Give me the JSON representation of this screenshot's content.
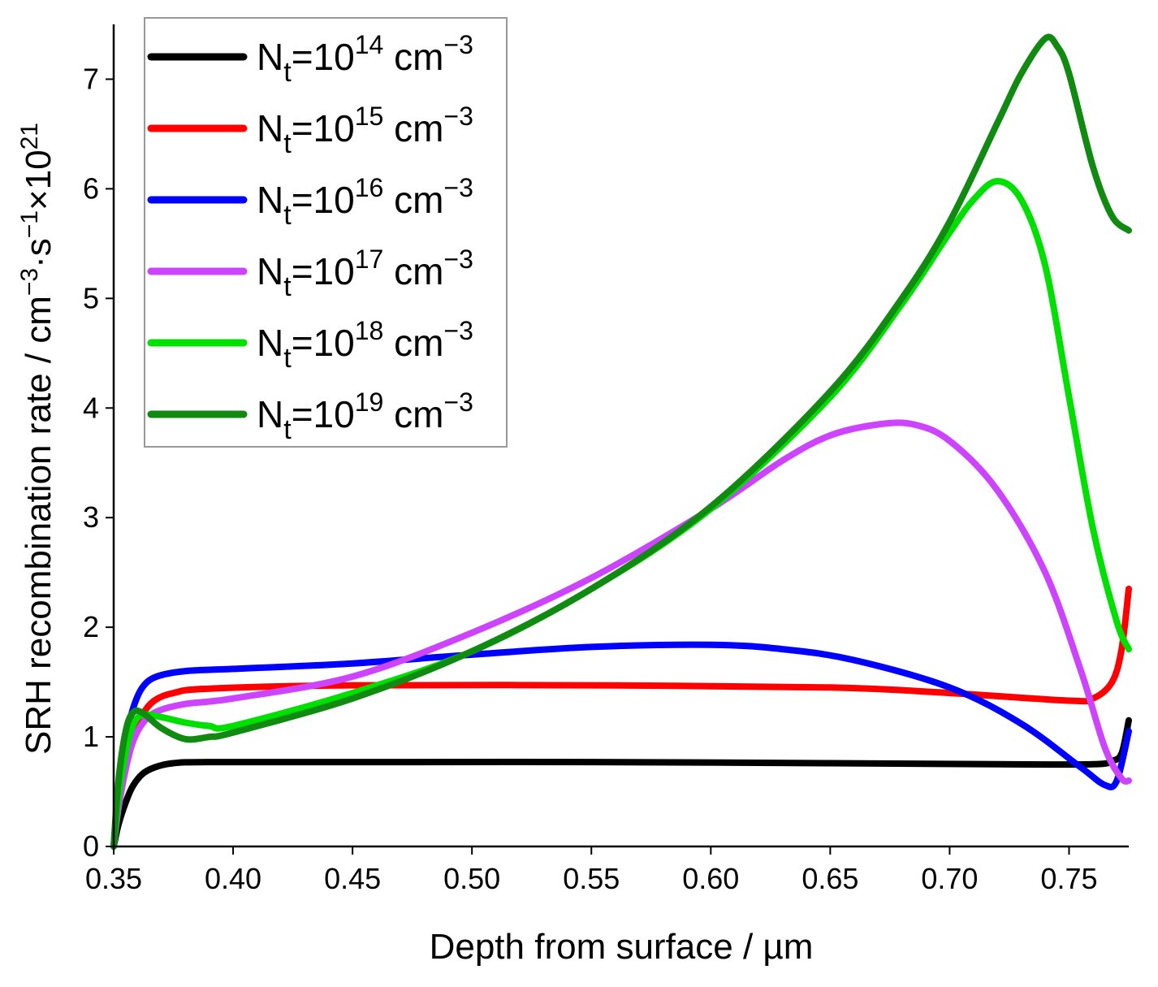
{
  "chart_data": {
    "type": "line",
    "title": "",
    "xlabel": "Depth from surface / µm",
    "ylabel": {
      "main": "SRH recombination rate / cm",
      "sup1": "−3",
      "mid": "·s",
      "sup2": "−1",
      "times": "×10",
      "sup3": "21"
    },
    "xlim": [
      0.35,
      0.775
    ],
    "ylim": [
      0,
      7.5
    ],
    "xticks": [
      "0.35",
      "0.40",
      "0.45",
      "0.50",
      "0.55",
      "0.60",
      "0.65",
      "0.70",
      "0.75"
    ],
    "yticks": [
      "0",
      "1",
      "2",
      "3",
      "4",
      "5",
      "6",
      "7"
    ],
    "legend_position": "top-left",
    "series": [
      {
        "name": "Nt=10^14 cm^-3",
        "label": {
          "base": "N",
          "sub": "t",
          "eq": "=10",
          "exp": "14",
          "unit": " cm",
          "unit_exp": "−3"
        },
        "color": "#000000",
        "points": [
          [
            0.35,
            0
          ],
          [
            0.352,
            0.2
          ],
          [
            0.355,
            0.4
          ],
          [
            0.358,
            0.55
          ],
          [
            0.362,
            0.66
          ],
          [
            0.367,
            0.72
          ],
          [
            0.375,
            0.76
          ],
          [
            0.39,
            0.77
          ],
          [
            0.45,
            0.77
          ],
          [
            0.55,
            0.77
          ],
          [
            0.65,
            0.76
          ],
          [
            0.72,
            0.75
          ],
          [
            0.76,
            0.75
          ],
          [
            0.768,
            0.78
          ],
          [
            0.772,
            0.85
          ],
          [
            0.775,
            1.15
          ]
        ]
      },
      {
        "name": "Nt=10^15 cm^-3",
        "label": {
          "base": "N",
          "sub": "t",
          "eq": "=10",
          "exp": "15",
          "unit": " cm",
          "unit_exp": "−3"
        },
        "color": "#ff0000",
        "points": [
          [
            0.35,
            0
          ],
          [
            0.352,
            0.4
          ],
          [
            0.355,
            0.75
          ],
          [
            0.358,
            1.0
          ],
          [
            0.362,
            1.2
          ],
          [
            0.367,
            1.33
          ],
          [
            0.375,
            1.4
          ],
          [
            0.39,
            1.44
          ],
          [
            0.45,
            1.47
          ],
          [
            0.55,
            1.47
          ],
          [
            0.65,
            1.45
          ],
          [
            0.7,
            1.4
          ],
          [
            0.75,
            1.33
          ],
          [
            0.76,
            1.35
          ],
          [
            0.768,
            1.5
          ],
          [
            0.772,
            1.8
          ],
          [
            0.775,
            2.35
          ]
        ]
      },
      {
        "name": "Nt=10^16 cm^-3",
        "label": {
          "base": "N",
          "sub": "t",
          "eq": "=10",
          "exp": "16",
          "unit": " cm",
          "unit_exp": "−3"
        },
        "color": "#0000ff",
        "points": [
          [
            0.35,
            0
          ],
          [
            0.352,
            0.5
          ],
          [
            0.355,
            0.95
          ],
          [
            0.358,
            1.25
          ],
          [
            0.362,
            1.45
          ],
          [
            0.368,
            1.55
          ],
          [
            0.38,
            1.6
          ],
          [
            0.4,
            1.62
          ],
          [
            0.45,
            1.67
          ],
          [
            0.5,
            1.75
          ],
          [
            0.55,
            1.82
          ],
          [
            0.6,
            1.84
          ],
          [
            0.63,
            1.8
          ],
          [
            0.66,
            1.7
          ],
          [
            0.7,
            1.45
          ],
          [
            0.73,
            1.12
          ],
          [
            0.755,
            0.72
          ],
          [
            0.765,
            0.56
          ],
          [
            0.77,
            0.6
          ],
          [
            0.775,
            1.05
          ]
        ]
      },
      {
        "name": "Nt=10^17 cm^-3",
        "label": {
          "base": "N",
          "sub": "t",
          "eq": "=10",
          "exp": "17",
          "unit": " cm",
          "unit_exp": "−3"
        },
        "color": "#cc44ff",
        "points": [
          [
            0.35,
            0
          ],
          [
            0.352,
            0.35
          ],
          [
            0.355,
            0.7
          ],
          [
            0.358,
            0.95
          ],
          [
            0.362,
            1.12
          ],
          [
            0.368,
            1.23
          ],
          [
            0.38,
            1.3
          ],
          [
            0.4,
            1.35
          ],
          [
            0.45,
            1.55
          ],
          [
            0.5,
            1.95
          ],
          [
            0.55,
            2.45
          ],
          [
            0.6,
            3.08
          ],
          [
            0.63,
            3.52
          ],
          [
            0.65,
            3.75
          ],
          [
            0.67,
            3.85
          ],
          [
            0.685,
            3.85
          ],
          [
            0.7,
            3.7
          ],
          [
            0.72,
            3.25
          ],
          [
            0.74,
            2.5
          ],
          [
            0.755,
            1.6
          ],
          [
            0.765,
            0.9
          ],
          [
            0.772,
            0.62
          ],
          [
            0.775,
            0.6
          ]
        ]
      },
      {
        "name": "Nt=10^18 cm^-3",
        "label": {
          "base": "N",
          "sub": "t",
          "eq": "=10",
          "exp": "18",
          "unit": " cm",
          "unit_exp": "−3"
        },
        "color": "#00e000",
        "points": [
          [
            0.35,
            0
          ],
          [
            0.352,
            0.45
          ],
          [
            0.355,
            0.85
          ],
          [
            0.358,
            1.1
          ],
          [
            0.362,
            1.2
          ],
          [
            0.37,
            1.18
          ],
          [
            0.38,
            1.13
          ],
          [
            0.39,
            1.1
          ],
          [
            0.4,
            1.1
          ],
          [
            0.45,
            1.4
          ],
          [
            0.5,
            1.78
          ],
          [
            0.55,
            2.35
          ],
          [
            0.6,
            3.08
          ],
          [
            0.65,
            4.1
          ],
          [
            0.68,
            4.95
          ],
          [
            0.7,
            5.6
          ],
          [
            0.71,
            5.9
          ],
          [
            0.72,
            6.07
          ],
          [
            0.73,
            5.9
          ],
          [
            0.74,
            5.3
          ],
          [
            0.75,
            4.1
          ],
          [
            0.76,
            2.9
          ],
          [
            0.77,
            2.05
          ],
          [
            0.775,
            1.8
          ]
        ]
      },
      {
        "name": "Nt=10^19 cm^-3",
        "label": {
          "base": "N",
          "sub": "t",
          "eq": "=10",
          "exp": "19",
          "unit": " cm",
          "unit_exp": "−3"
        },
        "color": "#108a10",
        "points": [
          [
            0.35,
            0
          ],
          [
            0.352,
            0.6
          ],
          [
            0.355,
            1.05
          ],
          [
            0.358,
            1.22
          ],
          [
            0.362,
            1.22
          ],
          [
            0.37,
            1.08
          ],
          [
            0.38,
            0.98
          ],
          [
            0.39,
            1.0
          ],
          [
            0.4,
            1.04
          ],
          [
            0.45,
            1.35
          ],
          [
            0.5,
            1.78
          ],
          [
            0.55,
            2.35
          ],
          [
            0.6,
            3.1
          ],
          [
            0.65,
            4.15
          ],
          [
            0.68,
            5.0
          ],
          [
            0.7,
            5.7
          ],
          [
            0.72,
            6.6
          ],
          [
            0.73,
            7.05
          ],
          [
            0.74,
            7.37
          ],
          [
            0.745,
            7.3
          ],
          [
            0.75,
            7.05
          ],
          [
            0.76,
            6.2
          ],
          [
            0.768,
            5.75
          ],
          [
            0.775,
            5.62
          ]
        ]
      }
    ]
  }
}
